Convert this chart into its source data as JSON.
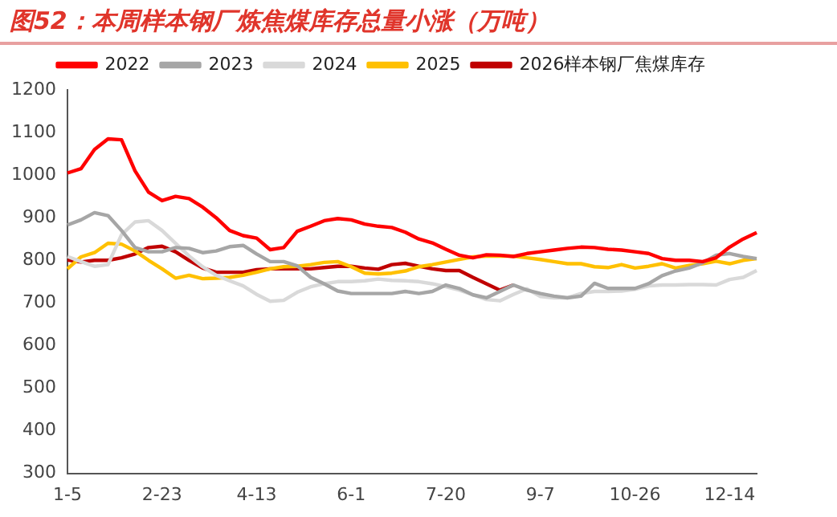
{
  "chart_data": {
    "type": "line",
    "title": "图52：本周样本钢厂炼焦煤库存总量小涨（万吨）",
    "categories": [
      "1-5",
      null,
      null,
      null,
      null,
      null,
      null,
      "2-23",
      null,
      null,
      null,
      null,
      null,
      null,
      "4-13",
      null,
      null,
      null,
      null,
      null,
      null,
      "6-1",
      null,
      null,
      null,
      null,
      null,
      null,
      "7-20",
      null,
      null,
      null,
      null,
      null,
      null,
      "9-7",
      null,
      null,
      null,
      null,
      null,
      null,
      "10-26",
      null,
      null,
      null,
      null,
      null,
      null,
      "12-14",
      null,
      null
    ],
    "series": [
      {
        "name": "2022",
        "color": "#ff0000",
        "values": [
          1005,
          1015,
          1060,
          1085,
          1083,
          1010,
          960,
          940,
          950,
          945,
          925,
          900,
          870,
          858,
          852,
          825,
          830,
          868,
          880,
          893,
          898,
          895,
          885,
          880,
          877,
          866,
          850,
          841,
          826,
          812,
          806,
          813,
          812,
          809,
          816,
          820,
          824,
          828,
          831,
          830,
          826,
          824,
          820,
          816,
          804,
          800,
          800,
          797,
          806,
          831,
          850,
          865
        ]
      },
      {
        "name": "2023",
        "color": "#a6a6a6",
        "values": [
          883,
          895,
          912,
          905,
          870,
          830,
          820,
          820,
          830,
          828,
          818,
          822,
          832,
          835,
          815,
          797,
          797,
          787,
          760,
          745,
          728,
          722,
          722,
          722,
          722,
          727,
          722,
          727,
          742,
          734,
          719,
          712,
          727,
          742,
          730,
          722,
          716,
          712,
          716,
          746,
          734,
          734,
          734,
          745,
          764,
          775,
          782,
          794,
          812,
          816,
          809,
          804
        ]
      },
      {
        "name": "2024",
        "color": "#d9d9d9",
        "values": [
          809,
          797,
          786,
          790,
          860,
          890,
          893,
          870,
          840,
          810,
          785,
          765,
          752,
          740,
          720,
          704,
          706,
          725,
          738,
          745,
          750,
          750,
          752,
          756,
          753,
          752,
          750,
          745,
          738,
          730,
          719,
          708,
          705,
          720,
          733,
          715,
          712,
          712,
          722,
          727,
          727,
          728,
          732,
          740,
          742,
          742,
          743,
          743,
          742,
          755,
          760,
          776
        ]
      },
      {
        "name": "2025",
        "color": "#ffc000",
        "values": [
          780,
          808,
          818,
          840,
          838,
          822,
          800,
          780,
          758,
          765,
          757,
          758,
          760,
          765,
          772,
          780,
          785,
          786,
          790,
          795,
          797,
          785,
          770,
          768,
          770,
          775,
          785,
          790,
          796,
          802,
          808,
          810,
          810,
          810,
          806,
          802,
          797,
          792,
          792,
          785,
          783,
          790,
          782,
          786,
          792,
          782,
          788,
          792,
          798,
          792,
          800,
          804
        ]
      },
      {
        "name": "2026样本钢厂焦煤库存",
        "color": "#c00000",
        "values": [
          801,
          796,
          800,
          800,
          806,
          815,
          830,
          833,
          820,
          800,
          782,
          772,
          772,
          772,
          778,
          780,
          780,
          780,
          780,
          783,
          786,
          786,
          782,
          779,
          790,
          793,
          786,
          780,
          776,
          776,
          760,
          745,
          730,
          742,
          null,
          null,
          null,
          null,
          null,
          null,
          null,
          null,
          null,
          null,
          null,
          null,
          null,
          null,
          null,
          null,
          null,
          null
        ]
      }
    ],
    "ylim": [
      300,
      1200
    ],
    "yticks": [
      300,
      400,
      500,
      600,
      700,
      800,
      900,
      1000,
      1100,
      1200
    ],
    "grid": false,
    "legend": "top",
    "marker": "none",
    "line_style": "solid"
  }
}
